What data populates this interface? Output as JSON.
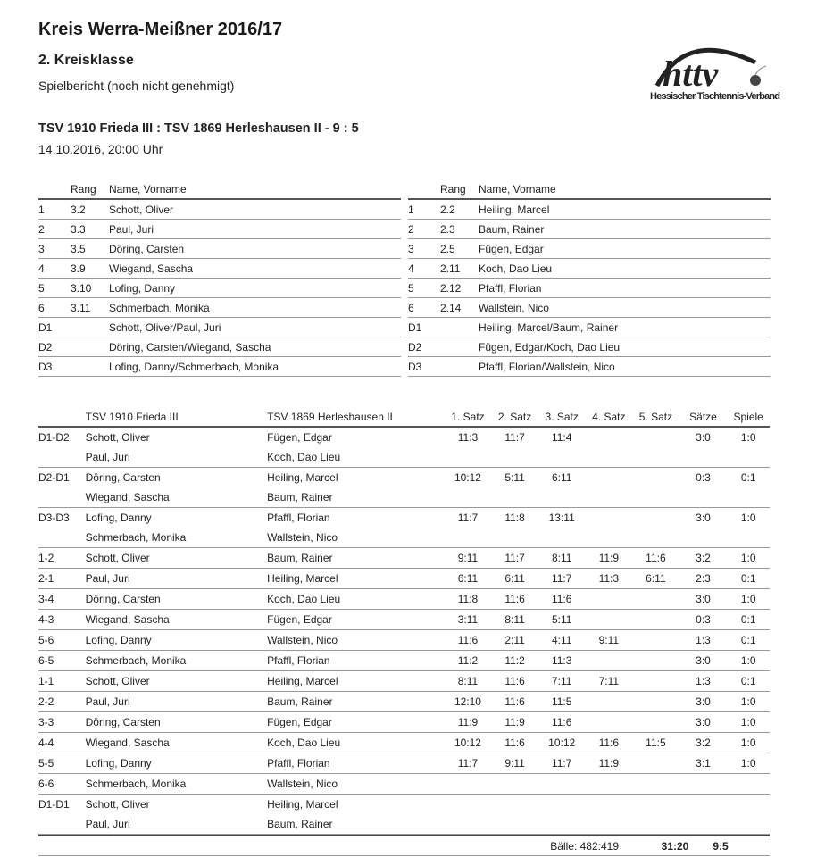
{
  "header": {
    "title": "Kreis Werra-Meißner 2016/17",
    "league": "2. Kreisklasse",
    "status": "Spielbericht (noch nicht genehmigt)",
    "match": "TSV 1910 Frieda III : TSV 1869 Herleshausen II - 9 : 5",
    "date": "14.10.2016, 20:00 Uhr"
  },
  "logo": {
    "text": "httv",
    "org": "Hessischer Tischtennis-Verband"
  },
  "players_header": {
    "rank": "Rang",
    "name": "Name, Vorname"
  },
  "home_players": [
    [
      "1",
      "3.2",
      "Schott, Oliver"
    ],
    [
      "2",
      "3.3",
      "Paul, Juri"
    ],
    [
      "3",
      "3.5",
      "Döring, Carsten"
    ],
    [
      "4",
      "3.9",
      "Wiegand, Sascha"
    ],
    [
      "5",
      "3.10",
      "Lofing, Danny"
    ],
    [
      "6",
      "3.11",
      "Schmerbach, Monika"
    ],
    [
      "D1",
      "",
      "Schott, Oliver/Paul, Juri"
    ],
    [
      "D2",
      "",
      "Döring, Carsten/Wiegand, Sascha"
    ],
    [
      "D3",
      "",
      "Lofing, Danny/Schmerbach, Monika"
    ]
  ],
  "away_players": [
    [
      "1",
      "2.2",
      "Heiling, Marcel"
    ],
    [
      "2",
      "2.3",
      "Baum, Rainer"
    ],
    [
      "3",
      "2.5",
      "Fügen, Edgar"
    ],
    [
      "4",
      "2.11",
      "Koch, Dao Lieu"
    ],
    [
      "5",
      "2.12",
      "Pfaffl, Florian"
    ],
    [
      "6",
      "2.14",
      "Wallstein, Nico"
    ],
    [
      "D1",
      "",
      "Heiling, Marcel/Baum, Rainer"
    ],
    [
      "D2",
      "",
      "Fügen, Edgar/Koch, Dao Lieu"
    ],
    [
      "D3",
      "",
      "Pfaffl, Florian/Wallstein, Nico"
    ]
  ],
  "games_header": [
    "",
    "TSV 1910 Frieda III",
    "TSV 1869 Herleshausen II",
    "1. Satz",
    "2. Satz",
    "3. Satz",
    "4. Satz",
    "5. Satz",
    "Sätze",
    "Spiele"
  ],
  "games": [
    {
      "code": "D1-D2",
      "home": [
        "Schott, Oliver",
        "Paul, Juri"
      ],
      "away": [
        "Fügen, Edgar",
        "Koch, Dao Lieu"
      ],
      "sets": [
        "11:3",
        "11:7",
        "11:4",
        "",
        ""
      ],
      "saetze": "3:0",
      "spiele": "1:0"
    },
    {
      "code": "D2-D1",
      "home": [
        "Döring, Carsten",
        "Wiegand, Sascha"
      ],
      "away": [
        "Heiling, Marcel",
        "Baum, Rainer"
      ],
      "sets": [
        "10:12",
        "5:11",
        "6:11",
        "",
        ""
      ],
      "saetze": "0:3",
      "spiele": "0:1"
    },
    {
      "code": "D3-D3",
      "home": [
        "Lofing, Danny",
        "Schmerbach, Monika"
      ],
      "away": [
        "Pfaffl, Florian",
        "Wallstein, Nico"
      ],
      "sets": [
        "11:7",
        "11:8",
        "13:11",
        "",
        ""
      ],
      "saetze": "3:0",
      "spiele": "1:0"
    },
    {
      "code": "1-2",
      "home": [
        "Schott, Oliver"
      ],
      "away": [
        "Baum, Rainer"
      ],
      "sets": [
        "9:11",
        "11:7",
        "8:11",
        "11:9",
        "11:6"
      ],
      "saetze": "3:2",
      "spiele": "1:0"
    },
    {
      "code": "2-1",
      "home": [
        "Paul, Juri"
      ],
      "away": [
        "Heiling, Marcel"
      ],
      "sets": [
        "6:11",
        "6:11",
        "11:7",
        "11:3",
        "6:11"
      ],
      "saetze": "2:3",
      "spiele": "0:1"
    },
    {
      "code": "3-4",
      "home": [
        "Döring, Carsten"
      ],
      "away": [
        "Koch, Dao Lieu"
      ],
      "sets": [
        "11:8",
        "11:6",
        "11:6",
        "",
        ""
      ],
      "saetze": "3:0",
      "spiele": "1:0"
    },
    {
      "code": "4-3",
      "home": [
        "Wiegand, Sascha"
      ],
      "away": [
        "Fügen, Edgar"
      ],
      "sets": [
        "3:11",
        "8:11",
        "5:11",
        "",
        ""
      ],
      "saetze": "0:3",
      "spiele": "0:1"
    },
    {
      "code": "5-6",
      "home": [
        "Lofing, Danny"
      ],
      "away": [
        "Wallstein, Nico"
      ],
      "sets": [
        "11:6",
        "2:11",
        "4:11",
        "9:11",
        ""
      ],
      "saetze": "1:3",
      "spiele": "0:1"
    },
    {
      "code": "6-5",
      "home": [
        "Schmerbach, Monika"
      ],
      "away": [
        "Pfaffl, Florian"
      ],
      "sets": [
        "11:2",
        "11:2",
        "11:3",
        "",
        ""
      ],
      "saetze": "3:0",
      "spiele": "1:0"
    },
    {
      "code": "1-1",
      "home": [
        "Schott, Oliver"
      ],
      "away": [
        "Heiling, Marcel"
      ],
      "sets": [
        "8:11",
        "11:6",
        "7:11",
        "7:11",
        ""
      ],
      "saetze": "1:3",
      "spiele": "0:1"
    },
    {
      "code": "2-2",
      "home": [
        "Paul, Juri"
      ],
      "away": [
        "Baum, Rainer"
      ],
      "sets": [
        "12:10",
        "11:6",
        "11:5",
        "",
        ""
      ],
      "saetze": "3:0",
      "spiele": "1:0"
    },
    {
      "code": "3-3",
      "home": [
        "Döring, Carsten"
      ],
      "away": [
        "Fügen, Edgar"
      ],
      "sets": [
        "11:9",
        "11:9",
        "11:6",
        "",
        ""
      ],
      "saetze": "3:0",
      "spiele": "1:0"
    },
    {
      "code": "4-4",
      "home": [
        "Wiegand, Sascha"
      ],
      "away": [
        "Koch, Dao Lieu"
      ],
      "sets": [
        "10:12",
        "11:6",
        "10:12",
        "11:6",
        "11:5"
      ],
      "saetze": "3:2",
      "spiele": "1:0"
    },
    {
      "code": "5-5",
      "home": [
        "Lofing, Danny"
      ],
      "away": [
        "Pfaffl, Florian"
      ],
      "sets": [
        "11:7",
        "9:11",
        "11:7",
        "11:9",
        ""
      ],
      "saetze": "3:1",
      "spiele": "1:0"
    },
    {
      "code": "6-6",
      "home": [
        "Schmerbach, Monika"
      ],
      "away": [
        "Wallstein, Nico"
      ],
      "sets": [
        "",
        "",
        "",
        "",
        ""
      ],
      "saetze": "",
      "spiele": ""
    },
    {
      "code": "D1-D1",
      "home": [
        "Schott, Oliver",
        "Paul, Juri"
      ],
      "away": [
        "Heiling, Marcel",
        "Baum, Rainer"
      ],
      "sets": [
        "",
        "",
        "",
        "",
        ""
      ],
      "saetze": "",
      "spiele": ""
    }
  ],
  "totals": {
    "balls": "Bälle: 482:419",
    "saetze": "31:20",
    "spiele": "9:5"
  }
}
